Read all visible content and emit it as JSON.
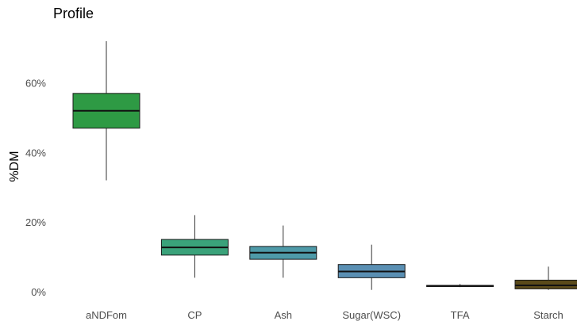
{
  "chart_data": {
    "type": "boxplot",
    "title": "Profile",
    "xlabel": "",
    "ylabel": "%DM",
    "ylim": [
      -0.0025,
      0.72
    ],
    "yticks": [
      0,
      0.2,
      0.4,
      0.6
    ],
    "ytick_labels": [
      "0%",
      "20%",
      "40%",
      "60%"
    ],
    "grid": false,
    "legend": "none",
    "categories": [
      "aNDFom",
      "CP",
      "Ash",
      "Sugar(WSC)",
      "TFA",
      "Starch"
    ],
    "boxes": [
      {
        "category": "aNDFom",
        "min": 0.32,
        "q1": 0.47,
        "median": 0.52,
        "q3": 0.57,
        "max": 0.72,
        "color": "#2e9a44"
      },
      {
        "category": "CP",
        "min": 0.04,
        "q1": 0.105,
        "median": 0.127,
        "q3": 0.15,
        "max": 0.22,
        "color": "#3aa27a"
      },
      {
        "category": "Ash",
        "min": 0.04,
        "q1": 0.093,
        "median": 0.112,
        "q3": 0.13,
        "max": 0.19,
        "color": "#4e9aa8"
      },
      {
        "category": "Sugar(WSC)",
        "min": 0.005,
        "q1": 0.04,
        "median": 0.058,
        "q3": 0.078,
        "max": 0.135,
        "color": "#5a8fb3"
      },
      {
        "category": "TFA",
        "min": 0.013,
        "q1": 0.015,
        "median": 0.017,
        "q3": 0.018,
        "max": 0.022,
        "color": "#4a3f1e"
      },
      {
        "category": "Starch",
        "min": 0.005,
        "q1": 0.008,
        "median": 0.018,
        "q3": 0.033,
        "max": 0.072,
        "color": "#5a4a1a"
      }
    ]
  }
}
